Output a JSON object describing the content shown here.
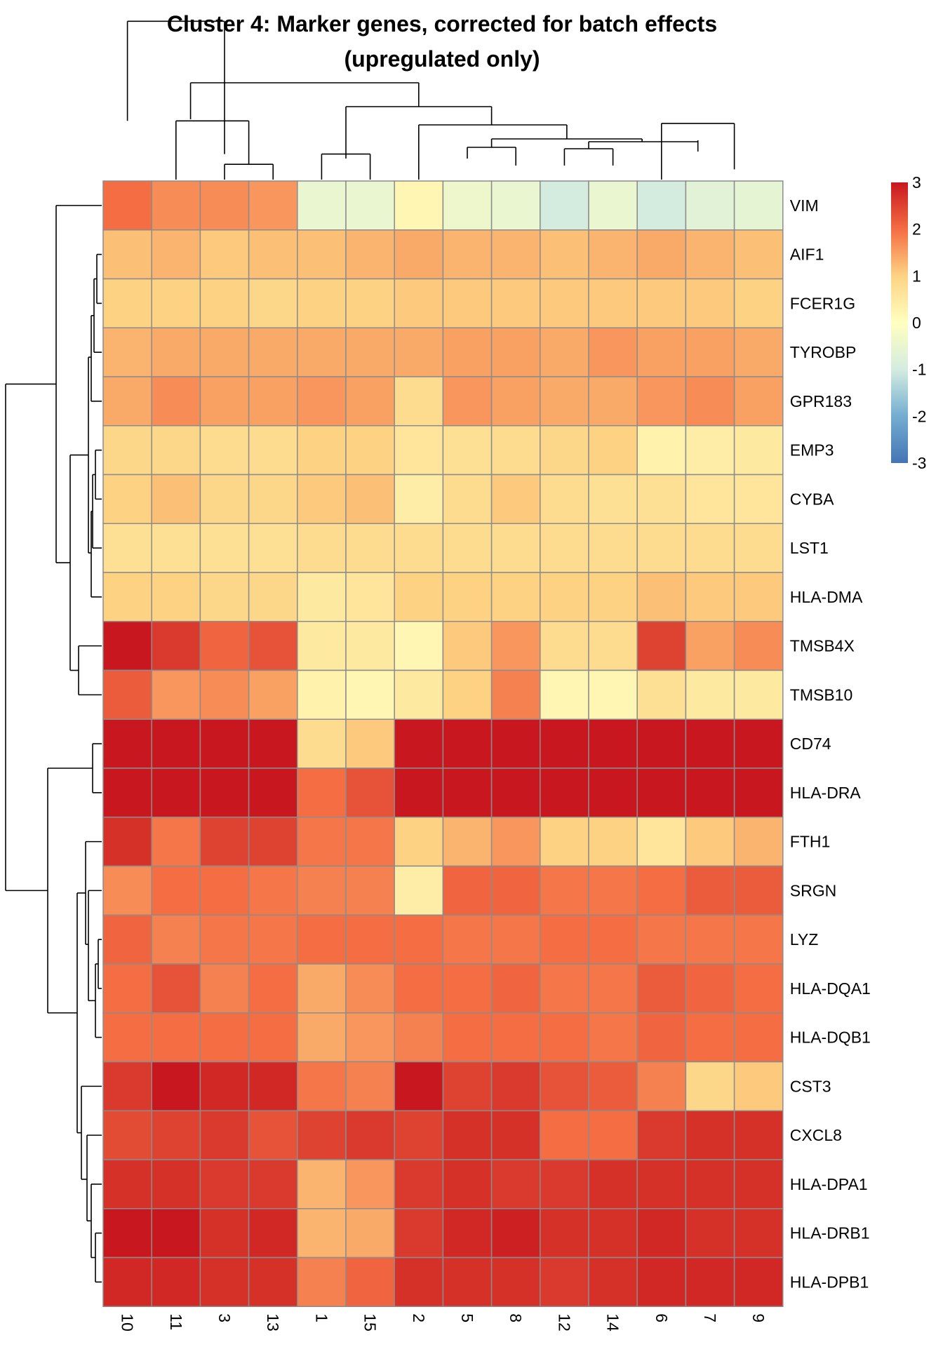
{
  "chart_data": {
    "type": "heatmap",
    "title": "Cluster 4: Marker genes, corrected for batch effects",
    "subtitle": "(upregulated only)",
    "columns": [
      "10",
      "11",
      "3",
      "13",
      "1",
      "15",
      "2",
      "5",
      "8",
      "12",
      "14",
      "6",
      "7",
      "9"
    ],
    "rows": [
      "VIM",
      "AIF1",
      "FCER1G",
      "TYROBP",
      "GPR183",
      "EMP3",
      "CYBA",
      "LST1",
      "HLA-DMA",
      "TMSB4X",
      "TMSB10",
      "CD74",
      "HLA-DRA",
      "FTH1",
      "SRGN",
      "LYZ",
      "HLA-DQA1",
      "HLA-DQB1",
      "CST3",
      "CXCL8",
      "HLA-DPA1",
      "HLA-DRB1",
      "HLA-DPB1"
    ],
    "values": [
      [
        2.0,
        1.7,
        1.7,
        1.6,
        -0.5,
        -0.5,
        0.2,
        -0.4,
        -0.5,
        -1.0,
        -0.5,
        -1.0,
        -0.7,
        -0.6
      ],
      [
        1.2,
        1.3,
        1.1,
        1.2,
        1.2,
        1.3,
        1.4,
        1.3,
        1.3,
        1.2,
        1.3,
        1.4,
        1.3,
        1.2
      ],
      [
        1.0,
        1.0,
        1.0,
        0.9,
        1.0,
        1.0,
        1.1,
        1.1,
        1.1,
        1.1,
        1.1,
        1.1,
        1.1,
        1.0
      ],
      [
        1.3,
        1.4,
        1.4,
        1.4,
        1.4,
        1.4,
        1.4,
        1.5,
        1.5,
        1.4,
        1.6,
        1.5,
        1.5,
        1.4
      ],
      [
        1.4,
        1.7,
        1.5,
        1.5,
        1.6,
        1.5,
        0.8,
        1.6,
        1.5,
        1.4,
        1.4,
        1.6,
        1.7,
        1.5
      ],
      [
        0.9,
        0.9,
        0.8,
        0.8,
        1.0,
        1.0,
        0.6,
        0.7,
        0.8,
        0.9,
        1.0,
        0.3,
        0.4,
        0.5
      ],
      [
        1.0,
        1.2,
        0.9,
        0.9,
        1.1,
        1.2,
        0.4,
        0.8,
        1.1,
        0.8,
        0.7,
        0.7,
        0.6,
        0.6
      ],
      [
        0.7,
        0.7,
        0.7,
        0.7,
        0.8,
        0.8,
        0.8,
        0.8,
        0.8,
        0.8,
        0.8,
        0.8,
        0.8,
        0.8
      ],
      [
        1.0,
        1.0,
        0.9,
        0.9,
        0.5,
        0.6,
        1.0,
        1.0,
        1.0,
        1.0,
        1.0,
        1.2,
        1.1,
        1.1
      ],
      [
        3.0,
        2.6,
        2.1,
        2.3,
        0.5,
        0.5,
        0.2,
        1.1,
        1.6,
        0.8,
        0.8,
        2.5,
        1.5,
        1.7
      ],
      [
        2.2,
        1.6,
        1.7,
        1.5,
        0.3,
        0.2,
        0.5,
        1.0,
        1.8,
        0.2,
        0.2,
        0.7,
        0.5,
        0.5
      ],
      [
        3.0,
        3.0,
        3.0,
        3.0,
        0.8,
        1.1,
        3.0,
        3.0,
        3.0,
        3.0,
        3.0,
        3.0,
        3.0,
        3.0
      ],
      [
        3.0,
        3.0,
        3.0,
        3.0,
        2.0,
        2.3,
        3.0,
        3.0,
        3.0,
        3.0,
        3.0,
        3.0,
        3.0,
        3.0
      ],
      [
        2.7,
        1.9,
        2.5,
        2.5,
        1.9,
        1.9,
        1.0,
        1.3,
        1.6,
        1.0,
        1.0,
        0.6,
        1.1,
        1.3
      ],
      [
        1.7,
        2.0,
        2.0,
        1.9,
        1.8,
        1.8,
        0.4,
        2.1,
        2.1,
        1.9,
        1.9,
        2.0,
        2.2,
        2.2
      ],
      [
        2.1,
        1.8,
        1.9,
        1.9,
        2.0,
        2.0,
        2.0,
        1.9,
        1.9,
        2.0,
        2.0,
        1.9,
        1.9,
        1.9
      ],
      [
        2.0,
        2.3,
        1.8,
        2.0,
        1.4,
        1.7,
        2.0,
        2.0,
        2.1,
        1.9,
        1.9,
        2.2,
        2.1,
        2.0
      ],
      [
        2.0,
        2.0,
        2.0,
        2.0,
        1.4,
        1.6,
        1.8,
        2.0,
        2.0,
        2.0,
        1.9,
        2.1,
        2.0,
        2.0
      ],
      [
        2.6,
        3.0,
        2.8,
        2.8,
        1.9,
        1.8,
        3.0,
        2.5,
        2.6,
        2.3,
        2.2,
        1.8,
        0.9,
        1.1
      ],
      [
        2.4,
        2.5,
        2.6,
        2.3,
        2.5,
        2.6,
        2.5,
        2.7,
        2.7,
        2.0,
        2.0,
        2.6,
        2.7,
        2.7
      ],
      [
        2.7,
        2.7,
        2.6,
        2.6,
        1.3,
        1.6,
        2.6,
        2.7,
        2.6,
        2.6,
        2.7,
        2.7,
        2.7,
        2.7
      ],
      [
        3.0,
        3.0,
        2.7,
        2.8,
        1.3,
        1.4,
        2.6,
        2.8,
        2.9,
        2.7,
        2.7,
        2.8,
        2.7,
        2.7
      ],
      [
        2.8,
        2.8,
        2.7,
        2.7,
        1.8,
        2.1,
        2.7,
        2.7,
        2.7,
        2.6,
        2.7,
        2.8,
        2.8,
        2.8
      ]
    ],
    "color_scale": {
      "stops": [
        {
          "v": -3,
          "c": "#4575b4"
        },
        {
          "v": -2,
          "c": "#74add1"
        },
        {
          "v": -1,
          "c": "#d4ece0"
        },
        {
          "v": 0,
          "c": "#ffffbf"
        },
        {
          "v": 1,
          "c": "#fdd383"
        },
        {
          "v": 2,
          "c": "#f46d43"
        },
        {
          "v": 3,
          "c": "#c8171e"
        }
      ],
      "range": [
        -3,
        3
      ],
      "ticks": [
        "3",
        "2",
        "1",
        "0",
        "-1",
        "-2",
        "-3"
      ]
    },
    "col_dendrogram": [
      {
        "a": "10",
        "b": "11x3-13",
        "ha": 0.23,
        "hb": 0.1,
        "h": 0.62,
        "oa": 0,
        "ob": 2
      },
      {
        "a": "11",
        "b": "3-13",
        "ha": 0,
        "hb": 0.06,
        "h": 0.23,
        "oa": 1,
        "ob": 2.5
      },
      {
        "a": "3",
        "b": "13",
        "ha": 0,
        "hb": 0,
        "h": 0.06,
        "oa": 2,
        "ob": 3
      },
      {
        "a": "1",
        "b": "15",
        "ha": 0,
        "hb": 0,
        "h": 0.1,
        "oa": 4,
        "ob": 5
      },
      {
        "a": "6",
        "b": "7-9",
        "ha": 0,
        "hb": 0.04,
        "h": 0.22,
        "oa": 11,
        "ob": 12.5
      }
    ],
    "colors": {
      "grid_line": "#8c8c8c",
      "dendrogram": "#000000"
    }
  }
}
